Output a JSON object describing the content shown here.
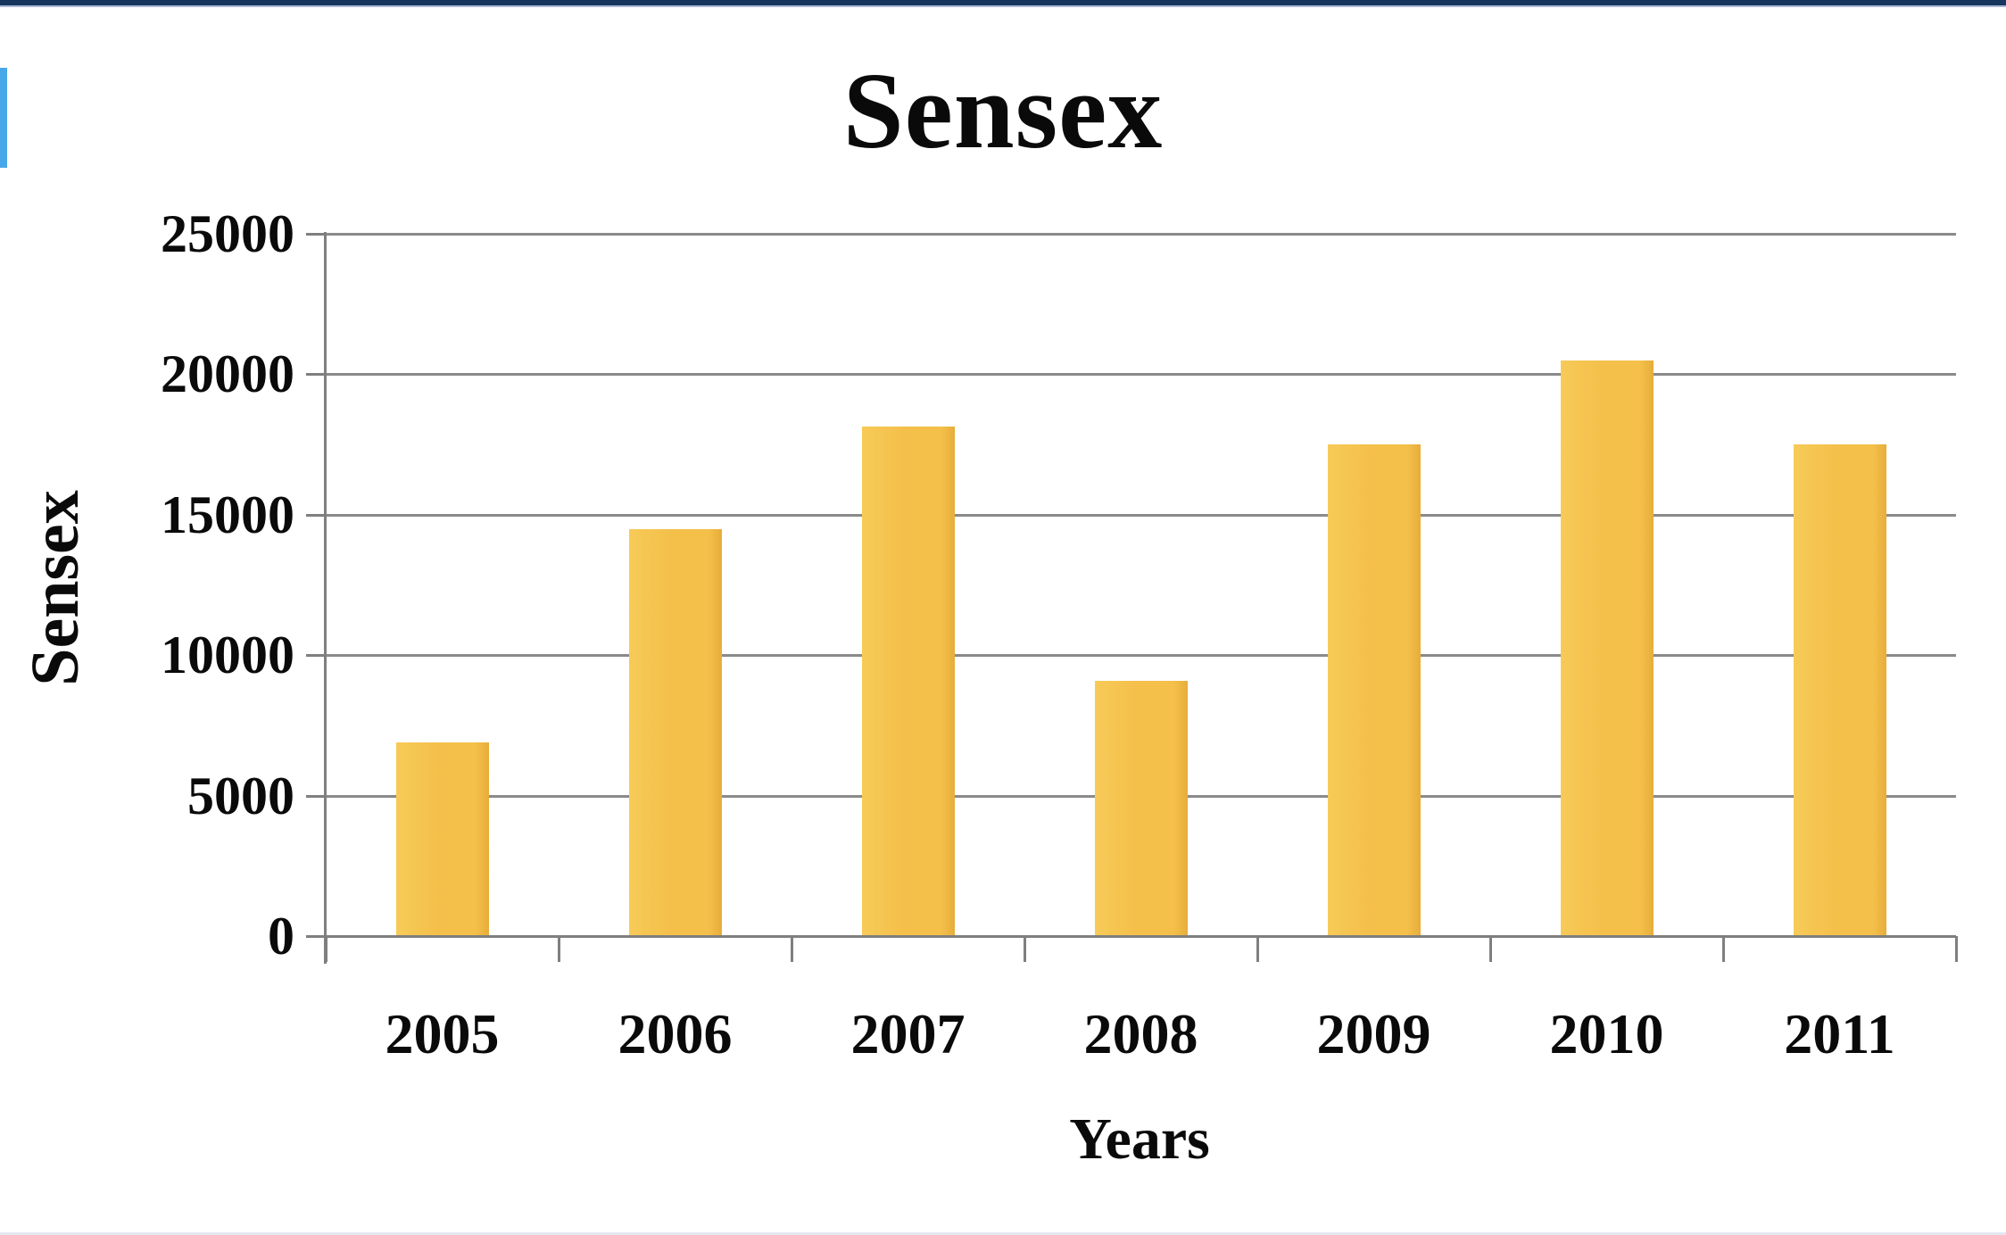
{
  "chart_data": {
    "type": "bar",
    "title": "Sensex",
    "xlabel": "Years",
    "ylabel": "Sensex",
    "categories": [
      "2005",
      "2006",
      "2007",
      "2008",
      "2009",
      "2010",
      "2011"
    ],
    "values": [
      6900,
      14500,
      18150,
      9100,
      17500,
      20500,
      17500
    ],
    "series": [
      {
        "name": "Sensex",
        "values": [
          6900,
          14500,
          18150,
          9100,
          17500,
          20500,
          17500
        ]
      }
    ],
    "ylim": [
      0,
      25000
    ],
    "ytick_step": 5000,
    "ytick_labels": [
      "0",
      "5000",
      "10000",
      "15000",
      "20000",
      "25000"
    ],
    "grid": "horizontal",
    "legend": "none",
    "bar_color": "#F4C04A",
    "bar_edge_color": "#E7AD3A",
    "bar_highlight_color": "#F7CA58",
    "gridline_color": "#8A8A8A",
    "axis_color": "#7F7F7F",
    "text_color": "#0A0A0A"
  },
  "decorations": {
    "top_border_color": "#17365D",
    "top_border_underline_color": "#A9B8DC",
    "left_accent_color": "#47A7E8",
    "bottom_border_color": "#E3E7EF"
  }
}
